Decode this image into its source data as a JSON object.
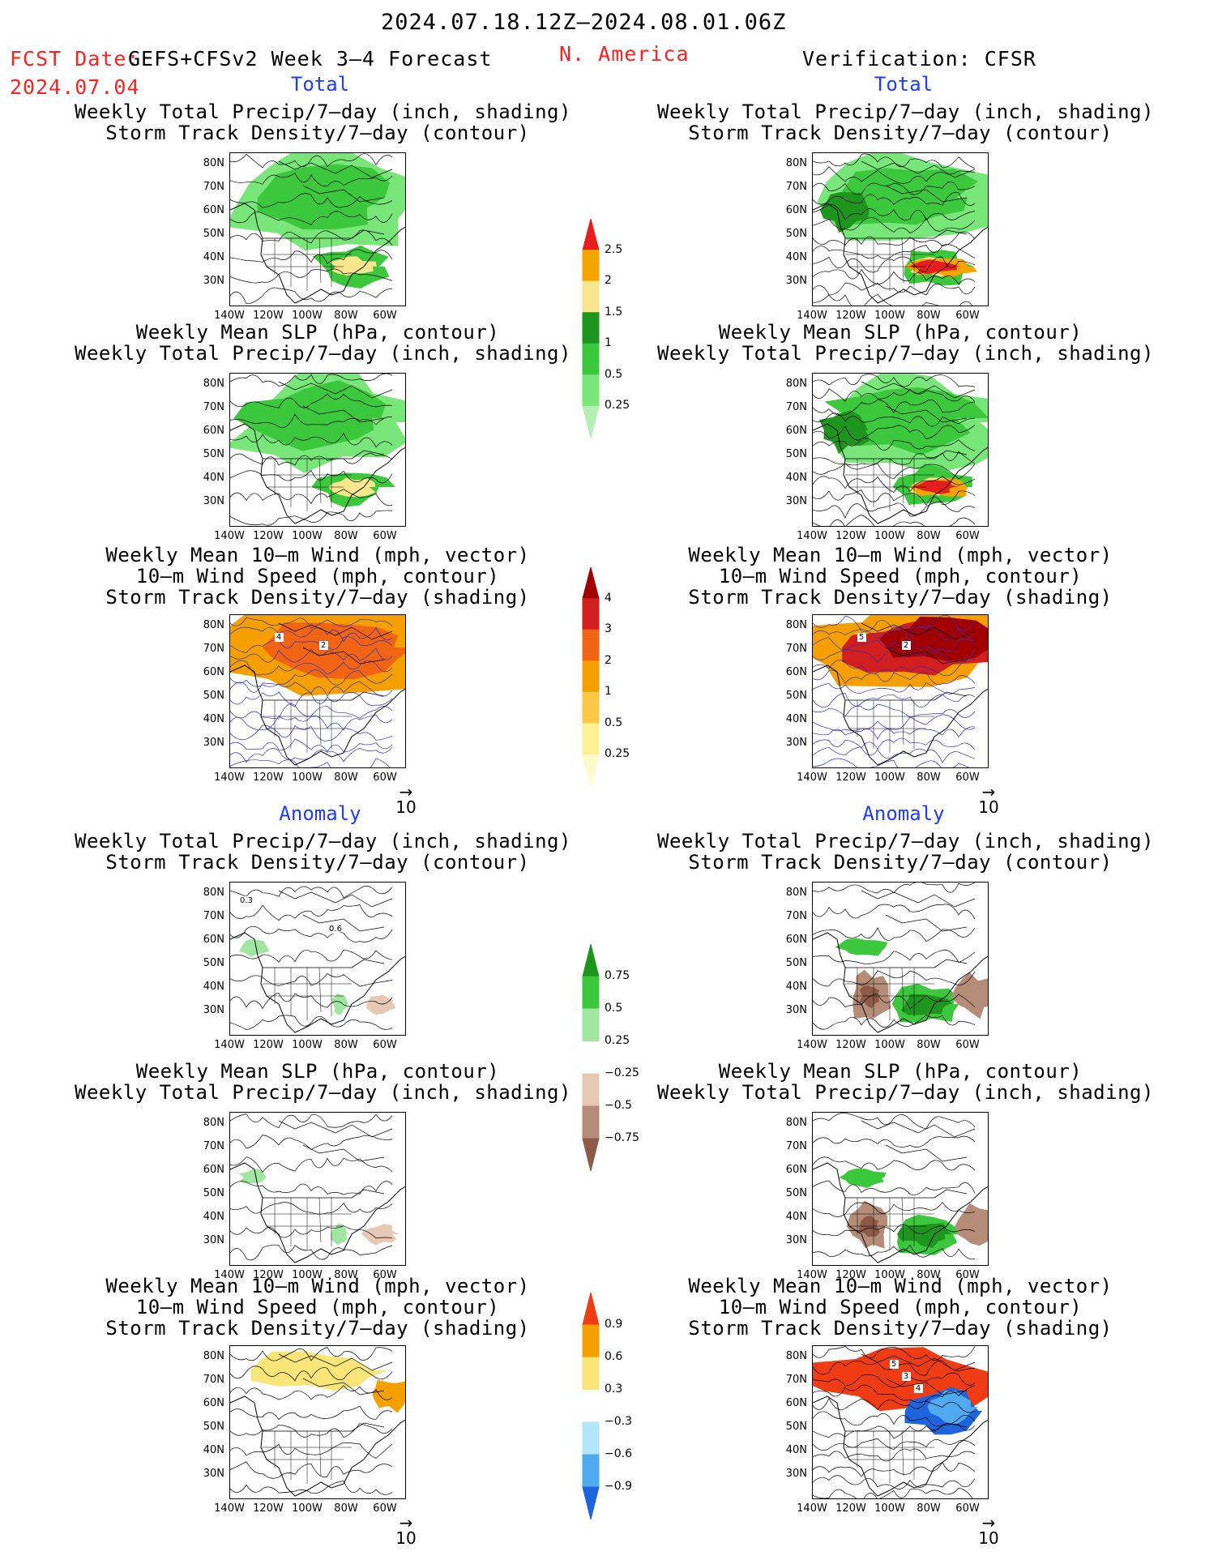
{
  "header": {
    "date_range": "2024.07.18.12Z–2024.08.01.06Z",
    "fcst_label": "FCST Date:",
    "fcst_product": "GEFS+CFSv2 Week 3–4 Forecast",
    "fcst_date": "2024.07.04",
    "region": "N. America",
    "verification": "Verification: CFSR"
  },
  "sections": {
    "total": "Total",
    "anomaly": "Anomaly"
  },
  "titles": {
    "precip_storm": [
      "Weekly Total Precip/7–day (inch, shading)",
      "Storm Track Density/7–day (contour)"
    ],
    "slp_precip": [
      "Weekly Mean SLP (hPa, contour)",
      "Weekly Total Precip/7–day (inch, shading)"
    ],
    "wind_storm": [
      "Weekly Mean 10–m Wind (mph, vector)",
      "10–m Wind Speed (mph, contour)",
      "Storm Track Density/7–day (shading)"
    ]
  },
  "axes": {
    "lat": [
      "80N",
      "70N",
      "60N",
      "50N",
      "40N",
      "30N"
    ],
    "lon": [
      "140W",
      "120W",
      "100W",
      "80W",
      "60W"
    ]
  },
  "vector_ref": "10",
  "colorbars": {
    "precip_total": {
      "levels": [
        "0.25",
        "0.5",
        "1",
        "1.5",
        "2",
        "2.5"
      ],
      "colors": [
        "#b4f0b4",
        "#78e678",
        "#3cc83c",
        "#1e961e",
        "#fae68c",
        "#f5a500",
        "#e61e1e"
      ]
    },
    "storm_total": {
      "levels": [
        "0.25",
        "0.5",
        "1",
        "2",
        "3",
        "4"
      ],
      "colors": [
        "#fffac8",
        "#fff096",
        "#fac846",
        "#f5a000",
        "#f06414",
        "#d21e1e",
        "#a00000"
      ]
    },
    "precip_anom": {
      "levels": [
        "0.75",
        "0.5",
        "0.25",
        "−0.25",
        "−0.5",
        "−0.75"
      ],
      "colors": [
        "#1e961e",
        "#3cc83c",
        "#a0e6a0",
        "#ffffff",
        "#e6c8b4",
        "#b48c78",
        "#8c5a46"
      ]
    },
    "storm_anom": {
      "levels": [
        "0.9",
        "0.6",
        "0.3",
        "−0.3",
        "−0.6",
        "−0.9"
      ],
      "colors": [
        "#f03c14",
        "#f5a000",
        "#fae678",
        "#ffffff",
        "#b4e6fa",
        "#50aaf0",
        "#1e64dc"
      ]
    }
  },
  "contour_labels": {
    "fc_total_wind": [
      "4",
      "2"
    ],
    "obs_total_wind": [
      "5",
      "2"
    ],
    "fc_anom_precip": [
      "0.3",
      "0.6"
    ],
    "obs_anom_wind": [
      "5",
      "3",
      "4"
    ]
  }
}
